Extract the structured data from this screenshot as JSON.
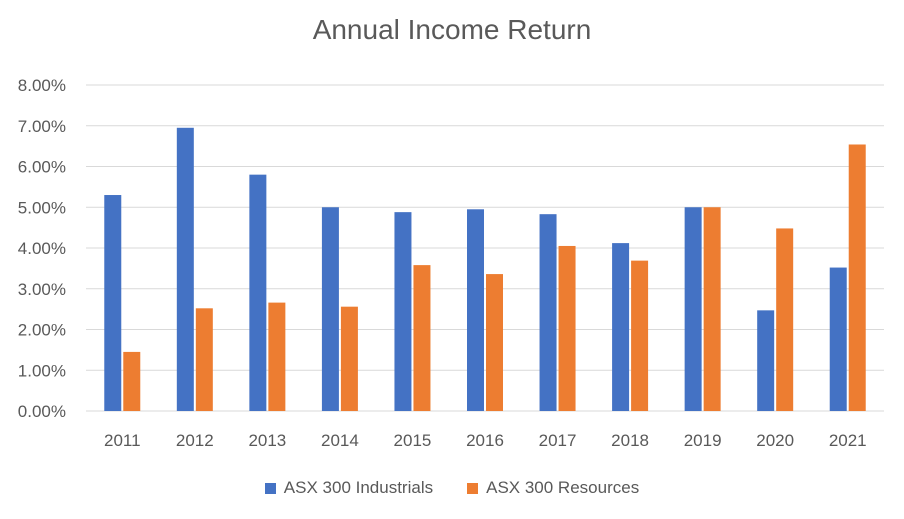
{
  "chart_data": {
    "type": "bar",
    "title": "Annual Income Return",
    "xlabel": "",
    "ylabel": "",
    "categories": [
      "2011",
      "2012",
      "2013",
      "2014",
      "2015",
      "2016",
      "2017",
      "2018",
      "2019",
      "2020",
      "2021"
    ],
    "series": [
      {
        "name": "ASX 300 Industrials",
        "color": "#4472C4",
        "values": [
          5.3,
          6.95,
          5.8,
          5.0,
          4.88,
          4.95,
          4.83,
          4.12,
          5.0,
          2.47,
          3.52
        ]
      },
      {
        "name": "ASX 300 Resources",
        "color": "#ED7D31",
        "values": [
          1.45,
          2.52,
          2.66,
          2.56,
          3.58,
          3.36,
          4.05,
          3.69,
          5.0,
          4.48,
          6.54
        ]
      }
    ],
    "ylim": [
      0,
      8
    ],
    "yticks": [
      "0.00%",
      "1.00%",
      "2.00%",
      "3.00%",
      "4.00%",
      "5.00%",
      "6.00%",
      "7.00%",
      "8.00%"
    ],
    "grid": true,
    "legend_position": "bottom"
  }
}
